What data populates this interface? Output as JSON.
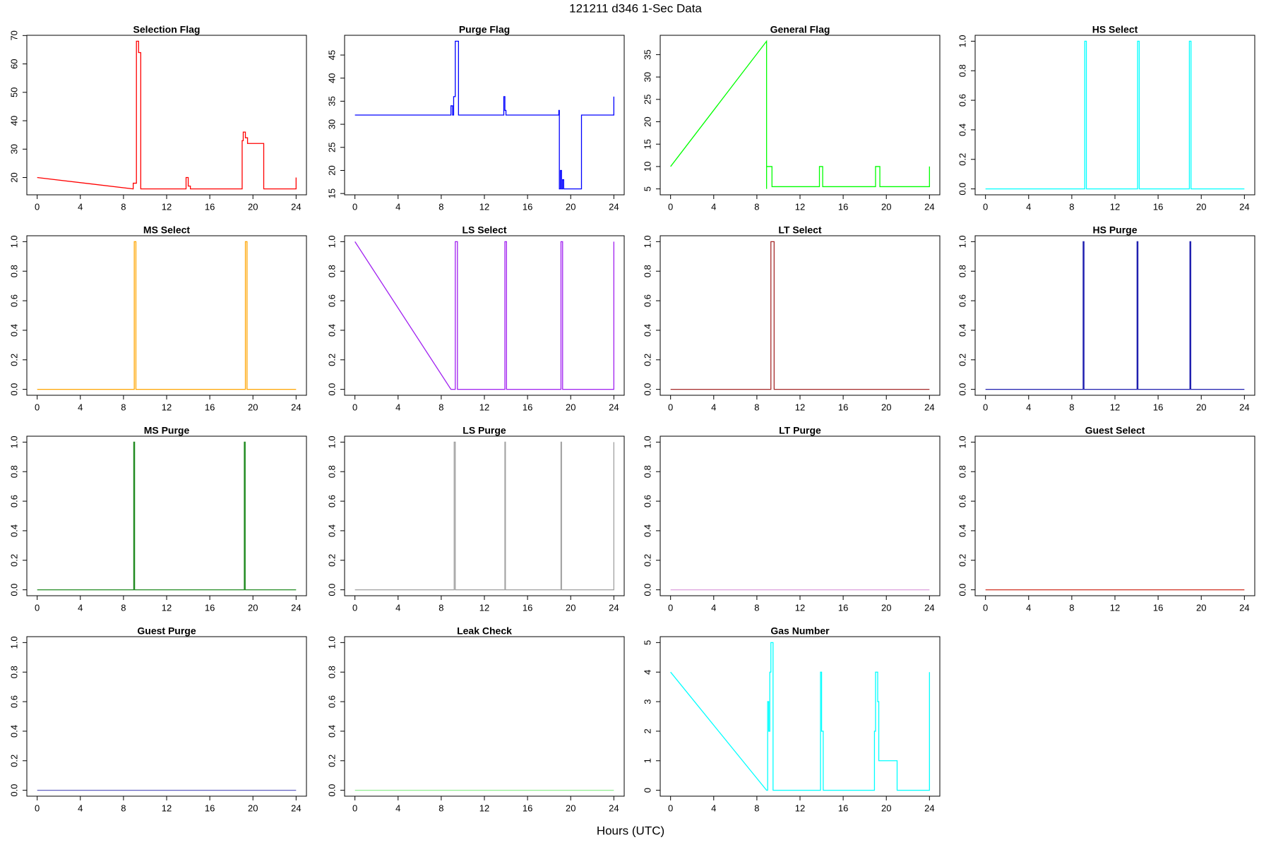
{
  "title": "121211   d346   1-Sec Data",
  "xlabel": "Hours (UTC)",
  "chart_data": [
    {
      "type": "line",
      "title": "Selection Flag",
      "color": "#ff0000",
      "xlim": [
        -0.96,
        24.96
      ],
      "xticks": [
        0,
        4,
        8,
        12,
        16,
        20,
        24
      ],
      "ylim": [
        13.92,
        70.08
      ],
      "yticks": [
        20,
        30,
        40,
        50,
        60,
        70
      ],
      "x": [
        0,
        8.9,
        8.9,
        9.2,
        9.2,
        9.4,
        9.4,
        9.6,
        9.6,
        13.8,
        13.8,
        14,
        14,
        14.2,
        14.2,
        19,
        19,
        19.1,
        19.1,
        19.3,
        19.3,
        19.5,
        19.5,
        21,
        21,
        24,
        24
      ],
      "values": [
        20,
        16,
        18,
        18,
        68,
        68,
        64,
        64,
        16,
        16,
        20,
        20,
        17,
        17,
        16,
        16,
        33,
        33,
        36,
        36,
        34,
        34,
        32,
        32,
        16,
        16,
        20
      ]
    },
    {
      "type": "line",
      "title": "Purge Flag",
      "color": "#0000ff",
      "xlim": [
        -0.96,
        24.96
      ],
      "xticks": [
        0,
        4,
        8,
        12,
        16,
        20,
        24
      ],
      "ylim": [
        14.72,
        49.28
      ],
      "yticks": [
        15,
        20,
        25,
        30,
        35,
        40,
        45
      ],
      "x": [
        0,
        8.9,
        8.9,
        9.05,
        9.05,
        9.15,
        9.15,
        9.3,
        9.3,
        9.6,
        9.6,
        13.8,
        13.8,
        13.9,
        13.9,
        14,
        14,
        18.9,
        18.9,
        18.95,
        18.95,
        19.05,
        19.05,
        19.15,
        19.15,
        19.25,
        19.25,
        19.35,
        19.35,
        21,
        21,
        24,
        24
      ],
      "values": [
        32,
        32,
        34,
        34,
        32,
        32,
        36,
        36,
        48,
        48,
        32,
        32,
        36,
        36,
        33,
        33,
        32,
        32,
        33,
        33,
        16,
        16,
        20,
        20,
        16,
        16,
        18,
        18,
        16,
        16,
        32,
        32,
        36
      ]
    },
    {
      "type": "line",
      "title": "General Flag",
      "color": "#00ff00",
      "xlim": [
        -0.96,
        24.96
      ],
      "xticks": [
        0,
        4,
        8,
        12,
        16,
        20,
        24
      ],
      "ylim": [
        3.68,
        39.32
      ],
      "yticks": [
        5,
        10,
        15,
        20,
        25,
        30,
        35
      ],
      "x": [
        0,
        8.9,
        8.9,
        8.9,
        9.4,
        9.4,
        13.8,
        13.8,
        14.1,
        14.1,
        19,
        19,
        19.4,
        19.4,
        24,
        24
      ],
      "values": [
        10,
        38,
        5,
        10,
        10,
        5.5,
        5.5,
        10,
        10,
        5.5,
        5.5,
        10,
        10,
        5.5,
        5.5,
        10
      ]
    },
    {
      "type": "line",
      "title": "HS Select",
      "color": "#00ffff",
      "xlim": [
        -0.96,
        24.96
      ],
      "xticks": [
        0,
        4,
        8,
        12,
        16,
        20,
        24
      ],
      "ylim": [
        -0.04,
        1.04
      ],
      "yticks": [
        {
          "value": 0,
          "label": "0.0"
        },
        {
          "value": 0.2,
          "label": "0.2"
        },
        {
          "value": 0.4,
          "label": "0.4"
        },
        {
          "value": 0.6,
          "label": "0.6"
        },
        {
          "value": 0.8,
          "label": "0.8"
        },
        {
          "value": 1,
          "label": "1.0"
        }
      ],
      "x": [
        0,
        9.2,
        9.2,
        9.35,
        9.35,
        14.1,
        14.1,
        14.25,
        14.25,
        18.9,
        18.9,
        19.05,
        19.05,
        24
      ],
      "values": [
        0,
        0,
        1,
        1,
        0,
        0,
        1,
        1,
        0,
        0,
        1,
        1,
        0,
        0
      ]
    },
    {
      "type": "line",
      "title": "MS Select",
      "color": "#ffa500",
      "xlim": [
        -0.96,
        24.96
      ],
      "xticks": [
        0,
        4,
        8,
        12,
        16,
        20,
        24
      ],
      "ylim": [
        -0.04,
        1.04
      ],
      "yticks": [
        {
          "value": 0,
          "label": "0.0"
        },
        {
          "value": 0.2,
          "label": "0.2"
        },
        {
          "value": 0.4,
          "label": "0.4"
        },
        {
          "value": 0.6,
          "label": "0.6"
        },
        {
          "value": 0.8,
          "label": "0.8"
        },
        {
          "value": 1,
          "label": "1.0"
        }
      ],
      "x": [
        0,
        9.0,
        9.0,
        9.15,
        9.15,
        19.3,
        19.3,
        19.45,
        19.45,
        24
      ],
      "values": [
        0,
        0,
        1,
        1,
        0,
        0,
        1,
        1,
        0,
        0
      ]
    },
    {
      "type": "line",
      "title": "LS Select",
      "color": "#a020f0",
      "xlim": [
        -0.96,
        24.96
      ],
      "xticks": [
        0,
        4,
        8,
        12,
        16,
        20,
        24
      ],
      "ylim": [
        -0.04,
        1.04
      ],
      "yticks": [
        {
          "value": 0,
          "label": "0.0"
        },
        {
          "value": 0.2,
          "label": "0.2"
        },
        {
          "value": 0.4,
          "label": "0.4"
        },
        {
          "value": 0.6,
          "label": "0.6"
        },
        {
          "value": 0.8,
          "label": "0.8"
        },
        {
          "value": 1,
          "label": "1.0"
        }
      ],
      "x": [
        0,
        8.9,
        9.3,
        9.3,
        9.5,
        9.5,
        13.9,
        13.9,
        14.05,
        14.05,
        19.1,
        19.1,
        19.25,
        19.25,
        24,
        24
      ],
      "values": [
        1,
        0,
        0,
        1,
        1,
        0,
        0,
        1,
        1,
        0,
        0,
        1,
        1,
        0,
        0,
        1
      ]
    },
    {
      "type": "line",
      "title": "LT Select",
      "color": "#a52a2a",
      "xlim": [
        -0.96,
        24.96
      ],
      "xticks": [
        0,
        4,
        8,
        12,
        16,
        20,
        24
      ],
      "ylim": [
        -0.04,
        1.04
      ],
      "yticks": [
        {
          "value": 0,
          "label": "0.0"
        },
        {
          "value": 0.2,
          "label": "0.2"
        },
        {
          "value": 0.4,
          "label": "0.4"
        },
        {
          "value": 0.6,
          "label": "0.6"
        },
        {
          "value": 0.8,
          "label": "0.8"
        },
        {
          "value": 1,
          "label": "1.0"
        }
      ],
      "x": [
        0,
        9.3,
        9.3,
        9.6,
        9.6,
        24
      ],
      "values": [
        0,
        0,
        1,
        1,
        0,
        0
      ]
    },
    {
      "type": "line",
      "title": "HS Purge",
      "color": "#2020b0",
      "xlim": [
        -0.96,
        24.96
      ],
      "xticks": [
        0,
        4,
        8,
        12,
        16,
        20,
        24
      ],
      "ylim": [
        -0.04,
        1.04
      ],
      "yticks": [
        {
          "value": 0,
          "label": "0.0"
        },
        {
          "value": 0.2,
          "label": "0.2"
        },
        {
          "value": 0.4,
          "label": "0.4"
        },
        {
          "value": 0.6,
          "label": "0.6"
        },
        {
          "value": 0.8,
          "label": "0.8"
        },
        {
          "value": 1,
          "label": "1.0"
        }
      ],
      "x": [
        0,
        9.05,
        9.05,
        9.13,
        9.13,
        14.05,
        14.05,
        14.13,
        14.13,
        18.95,
        18.95,
        19.03,
        19.03,
        24
      ],
      "values": [
        0,
        0,
        1,
        1,
        0,
        0,
        1,
        1,
        0,
        0,
        1,
        1,
        0,
        0
      ]
    },
    {
      "type": "line",
      "title": "MS Purge",
      "color": "#228b22",
      "xlim": [
        -0.96,
        24.96
      ],
      "xticks": [
        0,
        4,
        8,
        12,
        16,
        20,
        24
      ],
      "ylim": [
        -0.04,
        1.04
      ],
      "yticks": [
        {
          "value": 0,
          "label": "0.0"
        },
        {
          "value": 0.2,
          "label": "0.2"
        },
        {
          "value": 0.4,
          "label": "0.4"
        },
        {
          "value": 0.6,
          "label": "0.6"
        },
        {
          "value": 0.8,
          "label": "0.8"
        },
        {
          "value": 1,
          "label": "1.0"
        }
      ],
      "x": [
        0,
        8.95,
        8.95,
        9.03,
        9.03,
        19.2,
        19.2,
        19.28,
        19.28,
        24
      ],
      "values": [
        0,
        0,
        1,
        1,
        0,
        0,
        1,
        1,
        0,
        0
      ]
    },
    {
      "type": "line",
      "title": "LS Purge",
      "color": "#a0a0a0",
      "xlim": [
        -0.96,
        24.96
      ],
      "xticks": [
        0,
        4,
        8,
        12,
        16,
        20,
        24
      ],
      "ylim": [
        -0.04,
        1.04
      ],
      "yticks": [
        {
          "value": 0,
          "label": "0.0"
        },
        {
          "value": 0.2,
          "label": "0.2"
        },
        {
          "value": 0.4,
          "label": "0.4"
        },
        {
          "value": 0.6,
          "label": "0.6"
        },
        {
          "value": 0.8,
          "label": "0.8"
        },
        {
          "value": 1,
          "label": "1.0"
        }
      ],
      "x": [
        0,
        9.2,
        9.2,
        9.3,
        9.3,
        13.9,
        13.9,
        13.95,
        13.95,
        19.1,
        19.1,
        19.15,
        19.15,
        24,
        24
      ],
      "values": [
        0,
        0,
        1,
        1,
        0,
        0,
        1,
        1,
        0,
        0,
        1,
        1,
        0,
        0,
        1
      ]
    },
    {
      "type": "line",
      "title": "LT Purge",
      "color": "#dda0dd",
      "xlim": [
        -0.96,
        24.96
      ],
      "xticks": [
        0,
        4,
        8,
        12,
        16,
        20,
        24
      ],
      "ylim": [
        -0.04,
        1.04
      ],
      "yticks": [
        {
          "value": 0,
          "label": "0.0"
        },
        {
          "value": 0.2,
          "label": "0.2"
        },
        {
          "value": 0.4,
          "label": "0.4"
        },
        {
          "value": 0.6,
          "label": "0.6"
        },
        {
          "value": 0.8,
          "label": "0.8"
        },
        {
          "value": 1,
          "label": "1.0"
        }
      ],
      "x": [
        0,
        24
      ],
      "values": [
        0,
        0
      ]
    },
    {
      "type": "line",
      "title": "Guest Select",
      "color": "#d03020",
      "xlim": [
        -0.96,
        24.96
      ],
      "xticks": [
        0,
        4,
        8,
        12,
        16,
        20,
        24
      ],
      "ylim": [
        -0.04,
        1.04
      ],
      "yticks": [
        {
          "value": 0,
          "label": "0.0"
        },
        {
          "value": 0.2,
          "label": "0.2"
        },
        {
          "value": 0.4,
          "label": "0.4"
        },
        {
          "value": 0.6,
          "label": "0.6"
        },
        {
          "value": 0.8,
          "label": "0.8"
        },
        {
          "value": 1,
          "label": "1.0"
        }
      ],
      "x": [
        0,
        24
      ],
      "values": [
        0,
        0
      ]
    },
    {
      "type": "line",
      "title": "Guest Purge",
      "color": "#6060c0",
      "xlim": [
        -0.96,
        24.96
      ],
      "xticks": [
        0,
        4,
        8,
        12,
        16,
        20,
        24
      ],
      "ylim": [
        -0.04,
        1.04
      ],
      "yticks": [
        {
          "value": 0,
          "label": "0.0"
        },
        {
          "value": 0.2,
          "label": "0.2"
        },
        {
          "value": 0.4,
          "label": "0.4"
        },
        {
          "value": 0.6,
          "label": "0.6"
        },
        {
          "value": 0.8,
          "label": "0.8"
        },
        {
          "value": 1,
          "label": "1.0"
        }
      ],
      "x": [
        0,
        24
      ],
      "values": [
        0,
        0
      ]
    },
    {
      "type": "line",
      "title": "Leak Check",
      "color": "#90ee90",
      "xlim": [
        -0.96,
        24.96
      ],
      "xticks": [
        0,
        4,
        8,
        12,
        16,
        20,
        24
      ],
      "ylim": [
        -0.04,
        1.04
      ],
      "yticks": [
        {
          "value": 0,
          "label": "0.0"
        },
        {
          "value": 0.2,
          "label": "0.2"
        },
        {
          "value": 0.4,
          "label": "0.4"
        },
        {
          "value": 0.6,
          "label": "0.6"
        },
        {
          "value": 0.8,
          "label": "0.8"
        },
        {
          "value": 1,
          "label": "1.0"
        }
      ],
      "x": [
        0,
        24
      ],
      "values": [
        0,
        0
      ]
    },
    {
      "type": "line",
      "title": "Gas Number",
      "color": "#00ffff",
      "xlim": [
        -0.96,
        24.96
      ],
      "xticks": [
        0,
        4,
        8,
        12,
        16,
        20,
        24
      ],
      "ylim": [
        -0.2,
        5.2
      ],
      "yticks": [
        0,
        1,
        2,
        3,
        4,
        5
      ],
      "x": [
        0,
        8.9,
        9.0,
        9.0,
        9.1,
        9.1,
        9.2,
        9.2,
        9.3,
        9.3,
        9.5,
        9.5,
        13.9,
        13.9,
        14.0,
        14.0,
        14.15,
        14.15,
        18.9,
        18.9,
        19.0,
        19.0,
        19.2,
        19.2,
        19.3,
        19.3,
        21,
        21,
        24,
        24
      ],
      "values": [
        4,
        0,
        0,
        3,
        3,
        2,
        2,
        4,
        4,
        5,
        5,
        0,
        0,
        4,
        4,
        2,
        2,
        0,
        0,
        2,
        2,
        4,
        4,
        3,
        3,
        1,
        1,
        0,
        0,
        4
      ]
    }
  ]
}
